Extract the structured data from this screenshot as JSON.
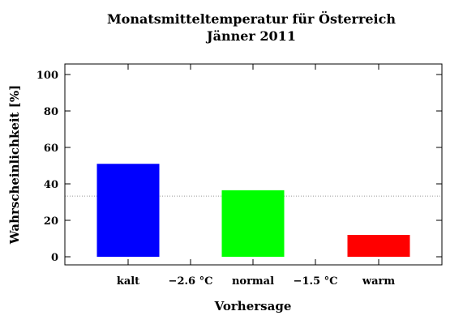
{
  "chart_data": {
    "type": "bar",
    "title": [
      "Monatsmitteltemperatur für Österreich",
      "Jänner 2011"
    ],
    "xlabel": "Vorhersage",
    "ylabel": "Wahrscheinlichkeit [%]",
    "ylim": [
      0,
      100
    ],
    "yticks": [
      "0",
      "20",
      "40",
      "60",
      "80",
      "100"
    ],
    "grid": false,
    "reference_line": 33.3,
    "categories": [
      "kalt",
      "normal",
      "warm"
    ],
    "values": [
      51,
      36.5,
      12
    ],
    "colors": [
      "#0000ff",
      "#00ff00",
      "#ff0000"
    ],
    "thresholds": [
      "−2.6 °C",
      "−1.5 °C"
    ]
  }
}
